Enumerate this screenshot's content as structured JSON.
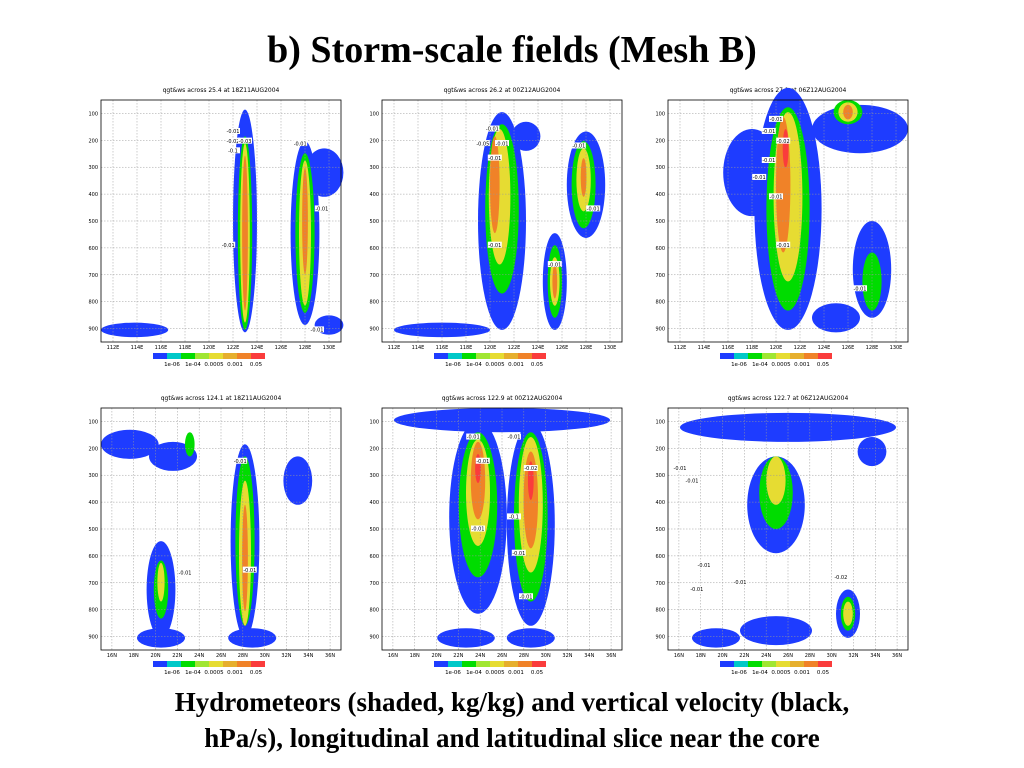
{
  "slide": {
    "title": "b) Storm-scale fields (Mesh B)",
    "caption_line1": "Hydrometeors (shaded, kg/kg) and vertical velocity (black,",
    "caption_line2": "hPa/s), longitudinal and latitudinal slice near the core"
  },
  "colorbar": {
    "colors": [
      "#1e3cff",
      "#00c8c8",
      "#00dc00",
      "#a0e632",
      "#e6dc32",
      "#e6af2d",
      "#f08228",
      "#fa3c3c"
    ],
    "labels": [
      "1e-06",
      "1e-04",
      "0.0005",
      "0.001",
      "0.05"
    ]
  },
  "chart_data": [
    {
      "type": "heatmap",
      "title": "qgt&ws across 25.4 at 18Z11AUG2004",
      "y_ticks": [
        "100",
        "200",
        "300",
        "400",
        "500",
        "600",
        "700",
        "800",
        "900"
      ],
      "x_ticks": [
        "112E",
        "114E",
        "116E",
        "118E",
        "120E",
        "122E",
        "124E",
        "126E",
        "128E",
        "130E"
      ],
      "contour_labels": [
        "-0.01",
        "-0.02",
        "-0.03",
        "-0.1",
        "-0.01",
        "-0.01",
        "-0.01",
        "-0.01"
      ],
      "colors": [
        "#1e3cff",
        "#00dc00",
        "#e6dc32",
        "#f08228",
        "#fa3c3c"
      ]
    },
    {
      "type": "heatmap",
      "title": "qgt&ws across 26.2 at 00Z12AUG2004",
      "y_ticks": [
        "100",
        "200",
        "300",
        "400",
        "500",
        "600",
        "700",
        "800",
        "900"
      ],
      "x_ticks": [
        "112E",
        "114E",
        "116E",
        "118E",
        "120E",
        "122E",
        "124E",
        "126E",
        "128E",
        "130E"
      ],
      "contour_labels": [
        "-0.01",
        "-0.05",
        "-0.01",
        "-0.01",
        "-0.01",
        "-0.01",
        "-0.01",
        "-0.01"
      ],
      "colors": [
        "#1e3cff",
        "#00dc00",
        "#e6dc32",
        "#f08228",
        "#fa3c3c"
      ]
    },
    {
      "type": "heatmap",
      "title": "qgt&ws across 27.1 at 06Z12AUG2004",
      "y_ticks": [
        "100",
        "200",
        "300",
        "400",
        "500",
        "600",
        "700",
        "800",
        "900"
      ],
      "x_ticks": [
        "112E",
        "114E",
        "116E",
        "118E",
        "120E",
        "122E",
        "124E",
        "126E",
        "128E",
        "130E"
      ],
      "contour_labels": [
        "-0.01",
        "-0.01",
        "-0.02",
        "-0.01",
        "-0.01",
        "-0.01",
        "-0.01",
        "-0.01"
      ],
      "colors": [
        "#1e3cff",
        "#00dc00",
        "#e6dc32",
        "#f08228",
        "#fa3c3c"
      ]
    },
    {
      "type": "heatmap",
      "title": "qgt&ws across 124.1 at 18Z11AUG2004",
      "y_ticks": [
        "100",
        "200",
        "300",
        "400",
        "500",
        "600",
        "700",
        "800",
        "900"
      ],
      "x_ticks": [
        "16N",
        "18N",
        "20N",
        "22N",
        "24N",
        "26N",
        "28N",
        "30N",
        "32N",
        "34N",
        "36N"
      ],
      "contour_labels": [
        "-0.01",
        "-0.01",
        "-0.01"
      ],
      "colors": [
        "#1e3cff",
        "#00dc00",
        "#e6dc32",
        "#f08228",
        "#fa3c3c"
      ]
    },
    {
      "type": "heatmap",
      "title": "qgt&ws across 122.9 at 00Z12AUG2004",
      "y_ticks": [
        "100",
        "200",
        "300",
        "400",
        "500",
        "600",
        "700",
        "800",
        "900"
      ],
      "x_ticks": [
        "16N",
        "18N",
        "20N",
        "22N",
        "24N",
        "26N",
        "28N",
        "30N",
        "32N",
        "34N",
        "36N"
      ],
      "contour_labels": [
        "-0.01",
        "-0.01",
        "-0.01",
        "-0.02",
        "-0.1",
        "-0.01",
        "-0.01",
        "-0.01"
      ],
      "colors": [
        "#1e3cff",
        "#00dc00",
        "#e6dc32",
        "#f08228",
        "#fa3c3c"
      ]
    },
    {
      "type": "heatmap",
      "title": "qgt&ws across 122.7 at 06Z12AUG2004",
      "y_ticks": [
        "100",
        "200",
        "300",
        "400",
        "500",
        "600",
        "700",
        "800",
        "900"
      ],
      "x_ticks": [
        "16N",
        "18N",
        "20N",
        "22N",
        "24N",
        "26N",
        "28N",
        "30N",
        "32N",
        "34N",
        "36N"
      ],
      "contour_labels": [
        "-0.01",
        "-0.01",
        "-0.01",
        "-0.01",
        "-0.01",
        "-0.02"
      ],
      "colors": [
        "#1e3cff",
        "#00dc00",
        "#e6dc32",
        "#f08228",
        "#fa3c3c"
      ]
    }
  ]
}
